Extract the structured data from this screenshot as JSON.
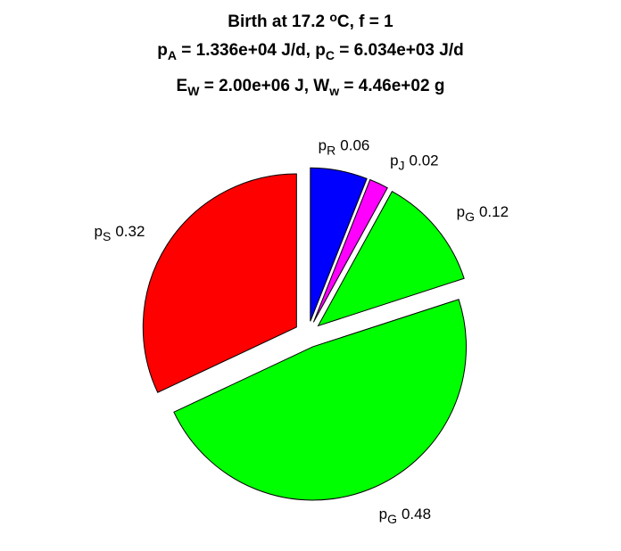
{
  "chart_data": {
    "type": "pie",
    "title": [
      [
        {
          "text": "Birth at 17.2 "
        },
        {
          "text": "o",
          "script": "sup"
        },
        {
          "text": "C, f = 1"
        }
      ],
      [
        {
          "text": "p"
        },
        {
          "text": "A",
          "script": "sub"
        },
        {
          "text": " = 1.336e+04 J/d, p"
        },
        {
          "text": "C",
          "script": "sub"
        },
        {
          "text": " = 6.034e+03 J/d"
        }
      ],
      [
        {
          "text": "E"
        },
        {
          "text": "W",
          "script": "sub"
        },
        {
          "text": " = 2.00e+06 J, W"
        },
        {
          "text": "w",
          "script": "sub"
        },
        {
          "text": " = 4.46e+02 g"
        }
      ]
    ],
    "categories": [
      {
        "base": "p",
        "sub": "R"
      },
      {
        "base": "p",
        "sub": "J"
      },
      {
        "base": "p",
        "sub": "G"
      },
      {
        "base": "p",
        "sub": "G"
      },
      {
        "base": "p",
        "sub": "S"
      }
    ],
    "values": [
      0.06,
      0.02,
      0.12,
      0.48,
      0.32
    ],
    "colors": [
      "#0000ff",
      "#ff00ff",
      "#00ff00",
      "#00ff00",
      "#ff0000"
    ],
    "exploded": true
  }
}
